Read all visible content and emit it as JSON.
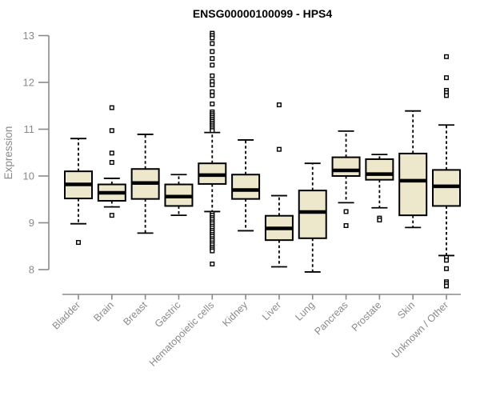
{
  "colors": {
    "box_fill": "#EDE7CC",
    "box_stroke": "#000000",
    "median_stroke": "#000000",
    "axis_line": "#8a8a8a",
    "axis_text": "#8a8a8a",
    "title_text": "#000000",
    "outlier_fill": "#ffffff"
  },
  "chart_data": {
    "type": "boxplot",
    "title": "ENSG00000100099 - HPS4",
    "xlabel": "",
    "ylabel": "Expression",
    "ylim": [
      8,
      13
    ],
    "yticks": [
      8,
      9,
      10,
      11,
      12,
      13
    ],
    "grid": false,
    "legend": "none",
    "categories": [
      "Bladder",
      "Brain",
      "Breast",
      "Gastric",
      "Hematopoietic cells",
      "Kidney",
      "Liver",
      "Lung",
      "Pancreas",
      "Prostate",
      "Skin",
      "Unknown / Other"
    ],
    "series": [
      {
        "name": "Bladder",
        "whislo": 8.98,
        "q1": 9.52,
        "med": 9.82,
        "q3": 10.1,
        "whishi": 10.8,
        "outliers": [
          8.58
        ]
      },
      {
        "name": "Brain",
        "whislo": 9.34,
        "q1": 9.47,
        "med": 9.64,
        "q3": 9.82,
        "whishi": 9.95,
        "outliers": [
          11.46,
          10.97,
          10.49,
          10.29,
          9.16
        ]
      },
      {
        "name": "Breast",
        "whislo": 8.78,
        "q1": 9.51,
        "med": 9.85,
        "q3": 10.15,
        "whishi": 10.89,
        "outliers": []
      },
      {
        "name": "Gastric",
        "whislo": 9.16,
        "q1": 9.36,
        "med": 9.56,
        "q3": 9.82,
        "whishi": 10.03,
        "outliers": []
      },
      {
        "name": "Hematopoietic cells",
        "whislo": 9.24,
        "q1": 9.83,
        "med": 10.02,
        "q3": 10.27,
        "whishi": 10.93,
        "outliers": [
          13.05,
          13.0,
          12.95,
          12.83,
          12.66,
          12.51,
          12.37,
          12.14,
          12.02,
          11.95,
          11.8,
          11.72,
          11.54,
          11.37,
          11.33,
          11.29,
          11.25,
          11.21,
          11.17,
          11.13,
          11.09,
          11.05,
          11.01,
          10.97,
          9.2,
          9.16,
          9.11,
          9.07,
          9.02,
          8.98,
          8.93,
          8.89,
          8.84,
          8.8,
          8.75,
          8.71,
          8.66,
          8.62,
          8.57,
          8.53,
          8.48,
          8.44,
          8.4,
          8.12
        ]
      },
      {
        "name": "Kidney",
        "whislo": 8.83,
        "q1": 9.51,
        "med": 9.7,
        "q3": 10.03,
        "whishi": 10.77,
        "outliers": []
      },
      {
        "name": "Liver",
        "whislo": 8.06,
        "q1": 8.63,
        "med": 8.88,
        "q3": 9.15,
        "whishi": 9.58,
        "outliers": [
          11.52,
          10.57
        ]
      },
      {
        "name": "Lung",
        "whislo": 7.95,
        "q1": 8.67,
        "med": 9.23,
        "q3": 9.69,
        "whishi": 10.27,
        "outliers": []
      },
      {
        "name": "Pancreas",
        "whislo": 9.43,
        "q1": 10.0,
        "med": 10.12,
        "q3": 10.4,
        "whishi": 10.96,
        "outliers": [
          9.24,
          8.94
        ]
      },
      {
        "name": "Prostate",
        "whislo": 9.32,
        "q1": 9.92,
        "med": 10.04,
        "q3": 10.36,
        "whishi": 10.46,
        "outliers": [
          9.1,
          9.06
        ]
      },
      {
        "name": "Skin",
        "whislo": 8.9,
        "q1": 9.16,
        "med": 9.9,
        "q3": 10.48,
        "whishi": 11.39,
        "outliers": []
      },
      {
        "name": "Unknown / Other",
        "whislo": 8.3,
        "q1": 9.36,
        "med": 9.78,
        "q3": 10.13,
        "whishi": 11.09,
        "outliers": [
          12.55,
          12.1,
          11.83,
          11.78,
          11.72,
          8.26,
          8.2,
          8.02,
          7.74,
          7.7,
          7.65
        ]
      }
    ]
  }
}
